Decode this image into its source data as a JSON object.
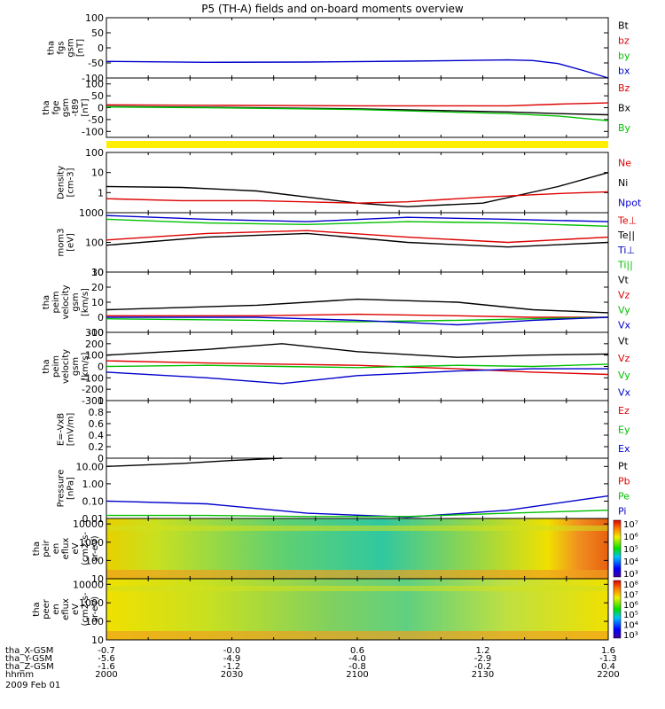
{
  "title": "P5 (TH-A) fields and on-board moments overview",
  "chart_data": [
    {
      "type": "line",
      "ylabel": [
        "tha",
        "fgs",
        "gsm",
        "[nT]"
      ],
      "ylim": [
        -100,
        100
      ],
      "yticks": [
        -100,
        -50,
        0,
        50,
        100
      ],
      "legend": [
        {
          "name": "Bt",
          "color": "#000000"
        },
        {
          "name": "bz",
          "color": "#dd0000"
        },
        {
          "name": "by",
          "color": "#00c000"
        },
        {
          "name": "bx",
          "color": "#0000cc"
        }
      ],
      "series": [
        {
          "name": "bx",
          "color": "#0000cc",
          "x": [
            0,
            6,
            20,
            40,
            60,
            80,
            85,
            90,
            95,
            100
          ],
          "y": [
            -45,
            -46,
            -48,
            -47,
            -44,
            -40,
            -42,
            -52,
            -75,
            -100
          ]
        }
      ]
    },
    {
      "type": "line",
      "ylabel": [
        "tha",
        "fge",
        "gsm",
        "-t89",
        "[nT]"
      ],
      "ylim": [
        -125,
        125
      ],
      "yticks": [
        -100,
        -50,
        0,
        50,
        100
      ],
      "legend": [
        {
          "name": "Bz",
          "color": "#dd0000"
        },
        {
          "name": "Bx",
          "color": "#000000"
        },
        {
          "name": "By",
          "color": "#00c000"
        }
      ],
      "series": [
        {
          "name": "Bz",
          "color": "#dd0000",
          "x": [
            0,
            20,
            50,
            80,
            90,
            100
          ],
          "y": [
            12,
            10,
            8,
            8,
            15,
            20
          ]
        },
        {
          "name": "Bx",
          "color": "#000000",
          "x": [
            0,
            20,
            50,
            80,
            90,
            100
          ],
          "y": [
            5,
            2,
            -5,
            -18,
            -25,
            -30
          ]
        },
        {
          "name": "By",
          "color": "#00c000",
          "x": [
            0,
            20,
            50,
            80,
            90,
            100
          ],
          "y": [
            3,
            0,
            -8,
            -25,
            -35,
            -55
          ]
        }
      ]
    },
    {
      "type": "line",
      "ylabel": [
        "Density",
        "[cm-3]"
      ],
      "scale": "log",
      "ylim": [
        0.1,
        100
      ],
      "yticks": [
        1,
        10,
        100
      ],
      "legend": [
        {
          "name": "Ne",
          "color": "#dd0000"
        },
        {
          "name": "Ni",
          "color": "#000000"
        },
        {
          "name": "Npot",
          "color": "#0000cc"
        }
      ],
      "series": [
        {
          "name": "Ni",
          "color": "#000000",
          "x": [
            0,
            15,
            30,
            50,
            60,
            75,
            90,
            100
          ],
          "y": [
            2,
            1.8,
            1.2,
            0.3,
            0.2,
            0.3,
            2,
            10
          ]
        },
        {
          "name": "Ne",
          "color": "#dd0000",
          "x": [
            0,
            15,
            30,
            50,
            60,
            75,
            90,
            100
          ],
          "y": [
            0.5,
            0.4,
            0.4,
            0.3,
            0.35,
            0.6,
            0.9,
            1.1
          ]
        }
      ]
    },
    {
      "type": "line",
      "ylabel": [
        "mom3",
        "[eV]"
      ],
      "scale": "log",
      "ylim": [
        10,
        1000
      ],
      "yticks": [
        10,
        100,
        1000
      ],
      "legend": [
        {
          "name": "Te⊥",
          "color": "#dd0000"
        },
        {
          "name": "Te||",
          "color": "#000000"
        },
        {
          "name": "Ti⊥",
          "color": "#0000cc"
        },
        {
          "name": "Ti||",
          "color": "#00c000"
        }
      ],
      "series": [
        {
          "name": "Ti⊥",
          "color": "#0000cc",
          "x": [
            0,
            20,
            40,
            60,
            80,
            100
          ],
          "y": [
            800,
            600,
            500,
            700,
            600,
            500
          ]
        },
        {
          "name": "Ti||",
          "color": "#00c000",
          "x": [
            0,
            20,
            40,
            60,
            80,
            100
          ],
          "y": [
            600,
            450,
            400,
            500,
            450,
            350
          ]
        },
        {
          "name": "Te⊥",
          "color": "#dd0000",
          "x": [
            0,
            20,
            40,
            60,
            80,
            100
          ],
          "y": [
            120,
            200,
            250,
            150,
            100,
            150
          ]
        },
        {
          "name": "Te||",
          "color": "#000000",
          "x": [
            0,
            20,
            40,
            60,
            80,
            100
          ],
          "y": [
            80,
            150,
            200,
            100,
            70,
            100
          ]
        }
      ]
    },
    {
      "type": "line",
      "ylabel": [
        "tha",
        "peim",
        "velocity",
        "gsm",
        "[km/s]"
      ],
      "ylim": [
        -10,
        30
      ],
      "yticks": [
        -10,
        0,
        10,
        20,
        30
      ],
      "legend": [
        {
          "name": "Vt",
          "color": "#000000"
        },
        {
          "name": "Vz",
          "color": "#dd0000"
        },
        {
          "name": "Vy",
          "color": "#00c000"
        },
        {
          "name": "Vx",
          "color": "#0000cc"
        }
      ],
      "series": [
        {
          "name": "Vt",
          "color": "#000000",
          "x": [
            0,
            30,
            50,
            70,
            85,
            100
          ],
          "y": [
            5,
            8,
            12,
            10,
            5,
            3
          ]
        },
        {
          "name": "Vz",
          "color": "#dd0000",
          "x": [
            0,
            30,
            50,
            70,
            85,
            100
          ],
          "y": [
            1,
            1,
            2,
            1,
            0,
            0
          ]
        },
        {
          "name": "Vy",
          "color": "#00c000",
          "x": [
            0,
            30,
            50,
            70,
            85,
            100
          ],
          "y": [
            -1,
            -2,
            -3,
            -2,
            -1,
            0
          ]
        },
        {
          "name": "Vx",
          "color": "#0000cc",
          "x": [
            0,
            30,
            50,
            70,
            85,
            100
          ],
          "y": [
            0,
            0,
            -2,
            -5,
            -2,
            0
          ]
        }
      ]
    },
    {
      "type": "line",
      "ylabel": [
        "tha",
        "peim",
        "velocity",
        "gsm",
        "[km/s]"
      ],
      "ylim": [
        -300,
        300
      ],
      "yticks": [
        -300,
        -200,
        -100,
        0,
        100,
        200,
        300
      ],
      "legend": [
        {
          "name": "Vt",
          "color": "#000000"
        },
        {
          "name": "Vz",
          "color": "#dd0000"
        },
        {
          "name": "Vy",
          "color": "#00c000"
        },
        {
          "name": "Vx",
          "color": "#0000cc"
        }
      ],
      "series": [
        {
          "name": "Vt",
          "color": "#000000",
          "x": [
            0,
            20,
            35,
            50,
            70,
            85,
            100
          ],
          "y": [
            100,
            150,
            200,
            130,
            80,
            100,
            110
          ]
        },
        {
          "name": "Vz",
          "color": "#dd0000",
          "x": [
            0,
            20,
            35,
            50,
            70,
            85,
            100
          ],
          "y": [
            50,
            30,
            20,
            10,
            -20,
            -50,
            -70
          ]
        },
        {
          "name": "Vy",
          "color": "#00c000",
          "x": [
            0,
            20,
            35,
            50,
            70,
            85,
            100
          ],
          "y": [
            0,
            10,
            0,
            -10,
            10,
            0,
            20
          ]
        },
        {
          "name": "Vx",
          "color": "#0000cc",
          "x": [
            0,
            20,
            35,
            50,
            70,
            85,
            100
          ],
          "y": [
            -50,
            -100,
            -150,
            -80,
            -40,
            -20,
            -20
          ]
        }
      ]
    },
    {
      "type": "line",
      "ylabel": [
        "E=-VxB",
        "[mV/m]"
      ],
      "ylim": [
        0,
        1
      ],
      "yticks": [
        0.0,
        0.2,
        0.4,
        0.6,
        0.8,
        1.0
      ],
      "legend": [
        {
          "name": "Ez",
          "color": "#dd0000"
        },
        {
          "name": "Ey",
          "color": "#00c000"
        },
        {
          "name": "Ex",
          "color": "#0000cc"
        }
      ],
      "series": []
    },
    {
      "type": "line",
      "ylabel": [
        "Pressure",
        "[nPa]"
      ],
      "scale": "log",
      "ylim": [
        0.01,
        30
      ],
      "yticks": [
        0.01,
        0.1,
        1,
        10
      ],
      "ytick_labels": [
        "0.01",
        "0.10",
        "1.00",
        "10.00"
      ],
      "legend": [
        {
          "name": "Pt",
          "color": "#000000"
        },
        {
          "name": "Pb",
          "color": "#dd0000"
        },
        {
          "name": "Pe",
          "color": "#00c000"
        },
        {
          "name": "Pi",
          "color": "#0000cc"
        }
      ],
      "series": [
        {
          "name": "Pt",
          "color": "#000000",
          "x": [
            0,
            15,
            25,
            35
          ],
          "y": [
            10,
            15,
            22,
            30
          ]
        },
        {
          "name": "Pi",
          "color": "#0000cc",
          "x": [
            0,
            20,
            40,
            60,
            80,
            100
          ],
          "y": [
            0.1,
            0.07,
            0.02,
            0.012,
            0.03,
            0.2
          ]
        },
        {
          "name": "Pe",
          "color": "#00c000",
          "x": [
            0,
            20,
            40,
            60,
            80,
            100
          ],
          "y": [
            0.015,
            0.015,
            0.013,
            0.013,
            0.02,
            0.03
          ]
        }
      ]
    },
    {
      "type": "heatmap",
      "ylabel": [
        "tha",
        "peir",
        "en",
        "eflux",
        "eV",
        "(cm2-s-",
        "sr-eV)"
      ],
      "scale": "log",
      "ylim": [
        10,
        20000
      ],
      "yticks": [
        10,
        100,
        1000,
        10000
      ],
      "colorbar_labels": [
        "10³",
        "10⁴",
        "10⁵",
        "10⁶",
        "10⁷"
      ]
    },
    {
      "type": "heatmap",
      "ylabel": [
        "tha",
        "peer",
        "en",
        "eflux",
        "eV",
        "(cm2-s-",
        "sr-eV)"
      ],
      "scale": "log",
      "ylim": [
        10,
        20000
      ],
      "yticks": [
        10,
        100,
        1000,
        10000
      ],
      "colorbar_labels": [
        "10³",
        "10⁴",
        "10⁵",
        "10⁶",
        "10⁷",
        "10⁸"
      ]
    }
  ],
  "x_axis": {
    "row_labels": [
      "tha_X-GSM",
      "tha_Y-GSM",
      "tha_Z-GSM",
      "hhmm"
    ],
    "columns": [
      [
        "-0.7",
        "-5.6",
        "-1.6",
        "2000"
      ],
      [
        "-0.0",
        "-4.9",
        "-1.2",
        "2030"
      ],
      [
        "0.6",
        "-4.0",
        "-0.8",
        "2100"
      ],
      [
        "1.2",
        "-2.9",
        "-0.2",
        "2130"
      ],
      [
        "1.6",
        "-1.3",
        "0.4",
        "2200"
      ]
    ],
    "date": "2009 Feb 01"
  }
}
